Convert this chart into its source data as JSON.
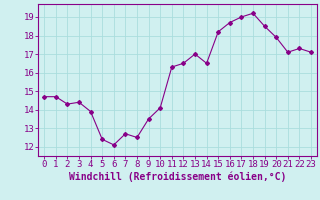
{
  "x": [
    0,
    1,
    2,
    3,
    4,
    5,
    6,
    7,
    8,
    9,
    10,
    11,
    12,
    13,
    14,
    15,
    16,
    17,
    18,
    19,
    20,
    21,
    22,
    23
  ],
  "y": [
    14.7,
    14.7,
    14.3,
    14.4,
    13.9,
    12.4,
    12.1,
    12.7,
    12.5,
    13.5,
    14.1,
    16.3,
    16.5,
    17.0,
    16.5,
    18.2,
    18.7,
    19.0,
    19.2,
    18.5,
    17.9,
    17.1,
    17.3,
    17.1
  ],
  "line_color": "#880088",
  "marker": "D",
  "marker_size": 2,
  "bg_color": "#d0f0f0",
  "grid_color": "#aadddd",
  "xlabel": "Windchill (Refroidissement éolien,°C)",
  "xlabel_fontsize": 7,
  "ylim": [
    11.5,
    19.7
  ],
  "xlim": [
    -0.5,
    23.5
  ],
  "yticks": [
    12,
    13,
    14,
    15,
    16,
    17,
    18,
    19
  ],
  "xticks": [
    0,
    1,
    2,
    3,
    4,
    5,
    6,
    7,
    8,
    9,
    10,
    11,
    12,
    13,
    14,
    15,
    16,
    17,
    18,
    19,
    20,
    21,
    22,
    23
  ],
  "tick_fontsize": 6.5,
  "spine_color": "#880088"
}
